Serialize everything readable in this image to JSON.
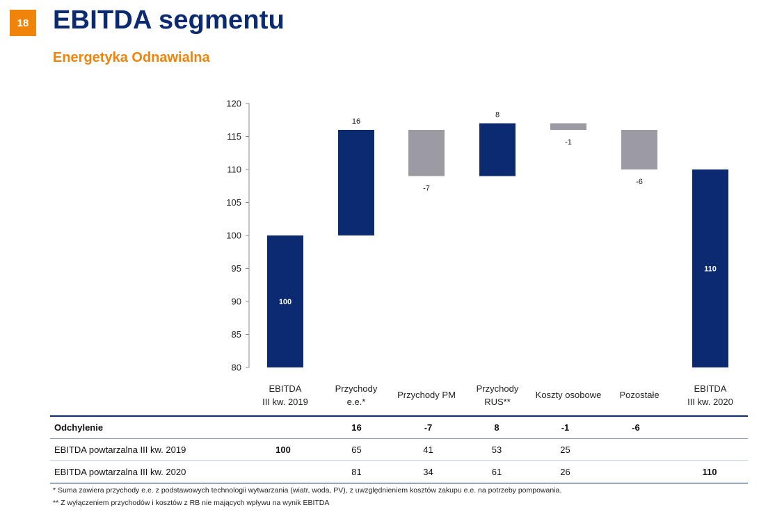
{
  "page_number": "18",
  "title": "EBITDA segmentu",
  "subtitle": "Energetyka Odnawialna",
  "colors": {
    "base": "#0b2a6f",
    "increase": "#0b2a6f",
    "decrease": "#9c9ba3",
    "accent": "#f0840a"
  },
  "chart_data": {
    "type": "bar",
    "subtype": "waterfall",
    "categories": [
      [
        "EBITDA",
        "III kw. 2019"
      ],
      [
        "Przychody",
        "e.e.*"
      ],
      [
        "Przychody PM"
      ],
      [
        "Przychody",
        "RUS**"
      ],
      [
        "Koszty osobowe"
      ],
      [
        "Pozostałe"
      ],
      [
        "EBITDA",
        "III kw. 2020"
      ]
    ],
    "steps": [
      {
        "kind": "total",
        "start": 0,
        "end": 100,
        "label": "100"
      },
      {
        "kind": "increase",
        "start": 100,
        "end": 116,
        "label": "16"
      },
      {
        "kind": "decrease",
        "start": 116,
        "end": 109,
        "label": "-7"
      },
      {
        "kind": "increase",
        "start": 109,
        "end": 117,
        "label": "8"
      },
      {
        "kind": "decrease",
        "start": 117,
        "end": 116,
        "label": "-1"
      },
      {
        "kind": "decrease",
        "start": 116,
        "end": 110,
        "label": "-6"
      },
      {
        "kind": "total",
        "start": 0,
        "end": 110,
        "label": "110"
      }
    ],
    "ylim": [
      80,
      120
    ],
    "yticks": [
      80,
      85,
      90,
      95,
      100,
      105,
      110,
      115,
      120
    ],
    "grid": false,
    "legend": false
  },
  "table": {
    "rows": [
      {
        "label": "Odchylenie",
        "cells": [
          "",
          "16",
          "-7",
          "8",
          "-1",
          "-6",
          ""
        ]
      },
      {
        "label": "EBITDA powtarzalna III kw. 2019",
        "cells": [
          "100",
          "65",
          "41",
          "53",
          "25",
          "",
          ""
        ]
      },
      {
        "label": "EBITDA powtarzalna III kw. 2020",
        "cells": [
          "",
          "81",
          "34",
          "61",
          "26",
          "",
          "110"
        ]
      }
    ]
  },
  "footnotes": [
    "* Suma zawiera przychody e.e. z podstawowych technologii wytwarzania (wiatr, woda, PV), z uwzględnieniem kosztów zakupu e.e. na potrzeby pompowania.",
    "** Z wyłączeniem przychodów i kosztów z RB nie mających wpływu na wynik EBITDA"
  ]
}
